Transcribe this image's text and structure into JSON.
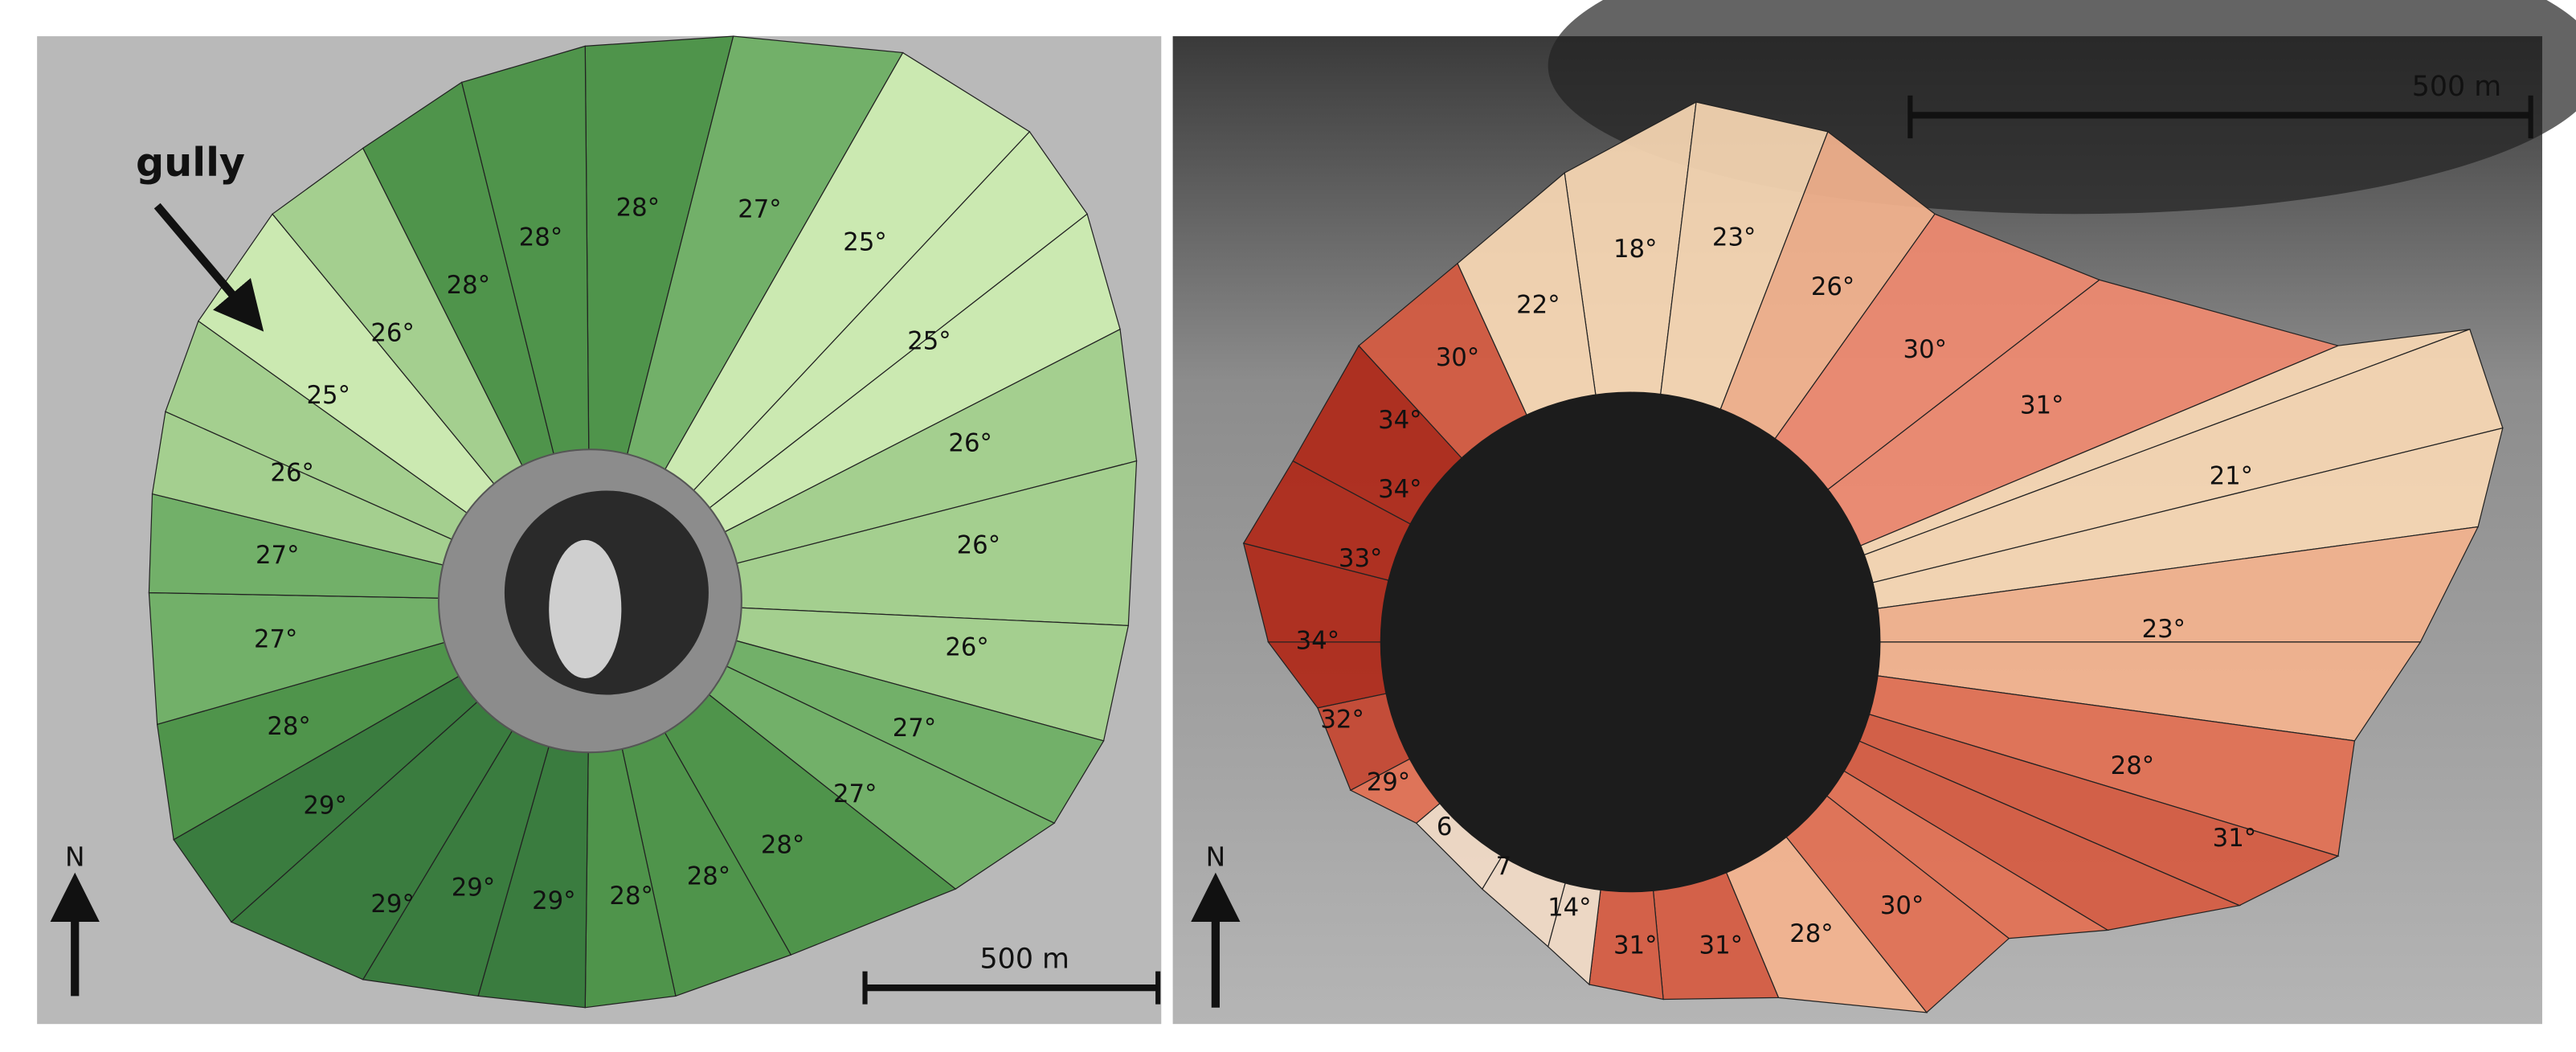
{
  "left_panel": {
    "annotation": "gully",
    "scale_bar": "500 m",
    "north": "N",
    "sectors": [
      "28°",
      "28°",
      "27°",
      "25°",
      "26°",
      "28°",
      "25°",
      "25°",
      "26°",
      "26°",
      "26°",
      "27°",
      "27°",
      "26°",
      "28°",
      "27°",
      "29°",
      "27°",
      "29°",
      "28°",
      "29°",
      "28°",
      "29°",
      "28°"
    ]
  },
  "right_panel": {
    "scale_bar": "500 m",
    "north": "N",
    "sectors": [
      "18°",
      "23°",
      "22°",
      "26°",
      "30°",
      "30°",
      "31°",
      "34°",
      "21°",
      "34°",
      "33°",
      "34°",
      "23°",
      "32°",
      "29°",
      "28°",
      "31°",
      "6",
      "7",
      "30°",
      "14°",
      "31°",
      "31°",
      "28°"
    ]
  }
}
